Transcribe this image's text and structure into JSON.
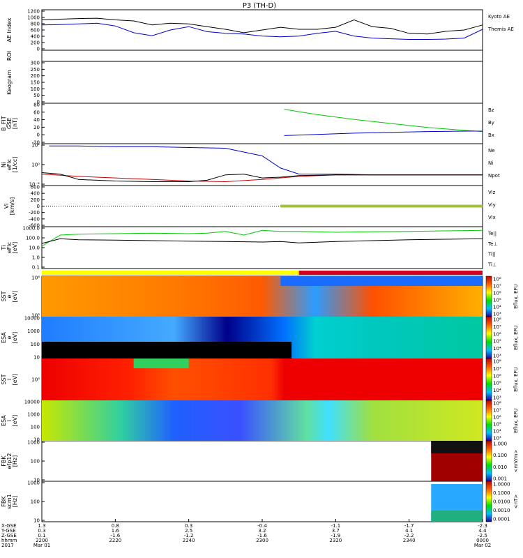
{
  "title": "P3 (TH-D)",
  "colors": {
    "kyoto": "#0000c8",
    "themis": "#000000",
    "bz": "#c80000",
    "by": "#00c800",
    "bx": "#0000c8",
    "red": "#dc0000",
    "green": "#00c800",
    "blue": "#0000c8"
  },
  "panels": [
    {
      "id": "ae",
      "ylabel": [
        "AE Index"
      ],
      "yticks": [
        "1200",
        "1000",
        "800",
        "600",
        "400",
        "200",
        "0"
      ],
      "legend": [
        {
          "text": "Kyoto AE",
          "color": "#0000c8"
        },
        {
          "text": "Themis AE",
          "color": "#000000"
        }
      ]
    },
    {
      "id": "roi",
      "ylabel": [
        "ROI"
      ],
      "yticks": [],
      "legend": []
    },
    {
      "id": "keogram",
      "ylabel": [
        "Keogram"
      ],
      "yticks": [
        "300",
        "250",
        "200",
        "150",
        "100",
        "50",
        "0"
      ],
      "legend": []
    },
    {
      "id": "bfgm",
      "ylabel": [
        "B_FIT",
        "GSE",
        "[nT]"
      ],
      "yticks": [
        "80",
        "60",
        "40",
        "20",
        "0",
        "-20"
      ],
      "legend": [
        {
          "text": "Bz",
          "color": "#c80000"
        },
        {
          "text": "By",
          "color": "#00c800"
        },
        {
          "text": "Bx",
          "color": "#0000c8"
        }
      ]
    },
    {
      "id": "ni",
      "ylabel": [
        "Ni",
        "eFIc",
        "[1/cc]"
      ],
      "yticks": [
        "10²",
        "10⁰",
        "10⁻²"
      ],
      "legend": [
        {
          "text": "Ne",
          "color": "#c80000"
        },
        {
          "text": "Ni",
          "color": "#000000"
        },
        {
          "text": "Npot",
          "color": "#0000c8"
        }
      ]
    },
    {
      "id": "vi",
      "ylabel": [
        "Vi",
        "[km/s]"
      ],
      "yticks": [
        "600",
        "400",
        "200",
        "0",
        "-200",
        "-400",
        "-600"
      ],
      "legend": [
        {
          "text": "Viz",
          "color": "#c80000"
        },
        {
          "text": "Viy",
          "color": "#00c800"
        },
        {
          "text": "Vix",
          "color": "#0000c8"
        }
      ]
    },
    {
      "id": "ti",
      "ylabel": [
        "Ti",
        "eFIc",
        "[eV]"
      ],
      "yticks": [
        "1000.0",
        "100.0",
        "10.0",
        "1.0",
        "0.1"
      ],
      "legend": [
        {
          "text": "Te||",
          "color": "#000000"
        },
        {
          "text": "Te⊥",
          "color": "#c80000"
        },
        {
          "text": "Ti||",
          "color": "#00c800"
        },
        {
          "text": "Ti⊥",
          "color": "#0000c8"
        }
      ]
    },
    {
      "id": "sst_e",
      "ylabel": [
        "SST",
        "e",
        "[eV]"
      ],
      "yticks": [
        "10⁶",
        "10⁵"
      ],
      "legend": []
    },
    {
      "id": "esa_e",
      "ylabel": [
        "ESA",
        "e",
        "[eV]"
      ],
      "yticks": [
        "10000",
        "1000",
        "100",
        "10"
      ],
      "legend": []
    },
    {
      "id": "sst_i",
      "ylabel": [
        "SST",
        "i",
        "[eV]"
      ],
      "yticks": [
        "10⁵"
      ],
      "legend": []
    },
    {
      "id": "esa_i",
      "ylabel": [
        "ESA",
        "i",
        "[eV]"
      ],
      "yticks": [
        "10000",
        "1000",
        "100",
        "10"
      ],
      "legend": []
    },
    {
      "id": "fbk_e",
      "ylabel": [
        "FBK",
        "efp12",
        "[Hz]"
      ],
      "yticks": [
        "1000",
        "100",
        "10"
      ],
      "legend": []
    },
    {
      "id": "fbk_b",
      "ylabel": [
        "FBK",
        "scm1",
        "[Hz]"
      ],
      "yticks": [
        "1000",
        "100",
        "10"
      ],
      "legend": []
    }
  ],
  "colorbars": [
    {
      "id": "cb1",
      "label": "Eflux, EFU",
      "ticks": [
        "10⁸",
        "10⁷",
        "10⁶",
        "10⁵",
        "10⁴",
        "10³"
      ]
    },
    {
      "id": "cb2",
      "label": "Eflux, EFU",
      "ticks": [
        "10⁸",
        "10⁷",
        "10⁶",
        "10⁵",
        "10⁴",
        "10³"
      ]
    },
    {
      "id": "cb3",
      "label": "Eflux, EFU",
      "ticks": [
        "10⁸",
        "10⁷",
        "10⁶",
        "10⁵",
        "10⁴",
        "10³"
      ]
    },
    {
      "id": "cb4",
      "label": "Eflux, EFU",
      "ticks": [
        "10⁸",
        "10⁷",
        "10⁶",
        "10⁵",
        "10⁴",
        "10³"
      ]
    },
    {
      "id": "cb5",
      "label": "<mV/m>",
      "ticks": [
        "1.000",
        "0.100",
        "0.010",
        "0.001"
      ]
    },
    {
      "id": "cb6",
      "label": "<nT>",
      "ticks": [
        "1.0000",
        "0.1000",
        "0.0100",
        "0.0010",
        "0.0001"
      ]
    }
  ],
  "chart_data": {
    "type": "line",
    "title": "P3 (TH-D)",
    "x_row_labels": [
      "X-GSE",
      "Y-GSE",
      "Z-GSE",
      "hhmm",
      "2017"
    ],
    "x_columns": [
      {
        "x": "-",
        "vals": [
          "1.3",
          "0.3",
          "0.1",
          "2200",
          "Mar 01"
        ]
      },
      {
        "x": "-",
        "vals": [
          "0.8",
          "1.6",
          "-1.6",
          "2220",
          ""
        ]
      },
      {
        "x": "-",
        "vals": [
          "0.3",
          "2.5",
          "-1.2",
          "2240",
          ""
        ]
      },
      {
        "x": "-",
        "vals": [
          "-0.4",
          "3.2",
          "-1.6",
          "2300",
          ""
        ]
      },
      {
        "x": "-",
        "vals": [
          "-1.1",
          "3.7",
          "-1.9",
          "2320",
          ""
        ]
      },
      {
        "x": "-",
        "vals": [
          "-1.7",
          "4.1",
          "-2.2",
          "2340",
          ""
        ]
      },
      {
        "x": "-",
        "vals": [
          "-2.3",
          "4.4",
          "-2.5",
          "0000",
          "Mar 02"
        ]
      }
    ],
    "series": [
      {
        "name": "Kyoto AE",
        "panel": "ae",
        "x": [
          0,
          5,
          10,
          15,
          20,
          25,
          30,
          35,
          40,
          45,
          50,
          55,
          60,
          65,
          70,
          75,
          80,
          85,
          90,
          95,
          100,
          105,
          110,
          115,
          120
        ],
        "values": [
          750,
          760,
          780,
          800,
          720,
          520,
          430,
          600,
          700,
          550,
          500,
          480,
          420,
          400,
          420,
          500,
          560,
          420,
          360,
          340,
          320,
          320,
          330,
          360,
          620
        ]
      },
      {
        "name": "Themis AE",
        "panel": "ae",
        "x": [
          0,
          5,
          10,
          15,
          20,
          25,
          30,
          35,
          40,
          45,
          50,
          55,
          60,
          65,
          70,
          75,
          80,
          85,
          90,
          95,
          100,
          105,
          110,
          115,
          120
        ],
        "values": [
          900,
          920,
          940,
          950,
          900,
          870,
          750,
          800,
          780,
          700,
          620,
          520,
          600,
          680,
          620,
          620,
          680,
          900,
          700,
          650,
          500,
          480,
          560,
          600,
          750
        ]
      },
      {
        "name": "By",
        "panel": "bfgm",
        "x": [
          66,
          75,
          85,
          95,
          105,
          115,
          120
        ],
        "values": [
          65,
          52,
          40,
          30,
          20,
          13,
          10
        ]
      },
      {
        "name": "Bx",
        "panel": "bfgm",
        "x": [
          66,
          75,
          85,
          95,
          105,
          115,
          120
        ],
        "values": [
          0,
          3,
          6,
          8,
          10,
          11,
          11
        ]
      },
      {
        "name": "Npot",
        "panel": "ni",
        "x": [
          2,
          10,
          20,
          30,
          40,
          50,
          60,
          65,
          70,
          75,
          80,
          90,
          100,
          110,
          120
        ],
        "values": [
          3.2,
          3.2,
          3.1,
          3.1,
          3.0,
          2.9,
          1.9,
          0.3,
          -0.5,
          -0.5,
          -0.5,
          -0.6,
          -0.6,
          -0.6,
          -0.6
        ]
      },
      {
        "name": "Ne",
        "panel": "ni",
        "x": [
          0,
          10,
          20,
          30,
          40,
          50,
          60,
          70,
          80,
          90,
          100,
          110,
          120
        ],
        "values": [
          -0.5,
          -0.8,
          -1.0,
          -1.2,
          -1.4,
          -1.5,
          -1.2,
          -0.8,
          -0.6,
          -0.6,
          -0.6,
          -0.6,
          -0.6
        ]
      },
      {
        "name": "Ni",
        "panel": "ni",
        "x": [
          0,
          5,
          10,
          20,
          30,
          40,
          45,
          50,
          55,
          60,
          65,
          70,
          80,
          90,
          100,
          110,
          120
        ],
        "values": [
          -0.3,
          -0.5,
          -1.2,
          -1.4,
          -1.5,
          -1.5,
          -1.3,
          -0.6,
          -0.5,
          -1.0,
          -0.9,
          -0.7,
          -0.6,
          -0.6,
          -0.6,
          -0.6,
          -0.6
        ]
      },
      {
        "name": "Ti||",
        "panel": "ti",
        "x": [
          0,
          5,
          10,
          20,
          30,
          40,
          45,
          50,
          55,
          60,
          65,
          70,
          80,
          90,
          100,
          110,
          120
        ],
        "values": [
          1.4,
          2.6,
          2.7,
          2.75,
          2.8,
          2.75,
          2.8,
          3.0,
          2.6,
          3.1,
          3.0,
          3.0,
          2.9,
          2.95,
          3.0,
          3.05,
          3.1
        ]
      },
      {
        "name": "Te||",
        "panel": "ti",
        "x": [
          0,
          5,
          10,
          20,
          30,
          40,
          50,
          60,
          65,
          70,
          80,
          90,
          100,
          110,
          120
        ],
        "values": [
          1.7,
          2.2,
          2.1,
          2.05,
          2.0,
          1.95,
          1.9,
          1.85,
          1.9,
          1.75,
          1.9,
          2.0,
          2.1,
          2.15,
          2.2
        ]
      }
    ],
    "xlim": [
      0,
      120
    ],
    "ylim_ae": [
      0,
      1200
    ],
    "ylim_bfgm": [
      -20,
      80
    ],
    "ylim_ni_log": [
      -2,
      3.5
    ],
    "ylim_ti_log": [
      -1,
      3.5
    ]
  }
}
